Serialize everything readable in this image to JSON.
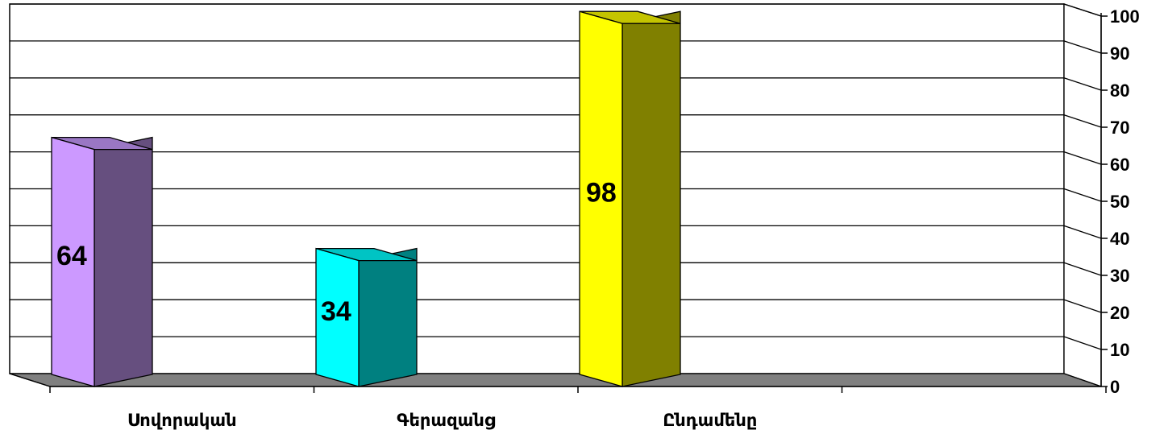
{
  "chart_data": {
    "type": "bar",
    "categories": [
      "Սովորական",
      "Գերազանց",
      "Ընդամենը"
    ],
    "values": [
      64,
      34,
      98
    ],
    "data_labels": [
      "64",
      "34",
      "98"
    ],
    "y_ticks": [
      "0",
      "10",
      "20",
      "30",
      "40",
      "50",
      "60",
      "70",
      "80",
      "90",
      "100"
    ],
    "ylim": [
      0,
      100
    ],
    "y_axis_side": "right",
    "grid": true,
    "bar_style": "3d-column",
    "bar_colors": [
      {
        "front": "#CC99FF",
        "side": "#664F7F",
        "top": "#9A77C4"
      },
      {
        "front": "#00FFFF",
        "side": "#008080",
        "top": "#00C4C4"
      },
      {
        "front": "#FFFF00",
        "side": "#808000",
        "top": "#C4C400"
      }
    ],
    "floor_color": "#808080"
  }
}
